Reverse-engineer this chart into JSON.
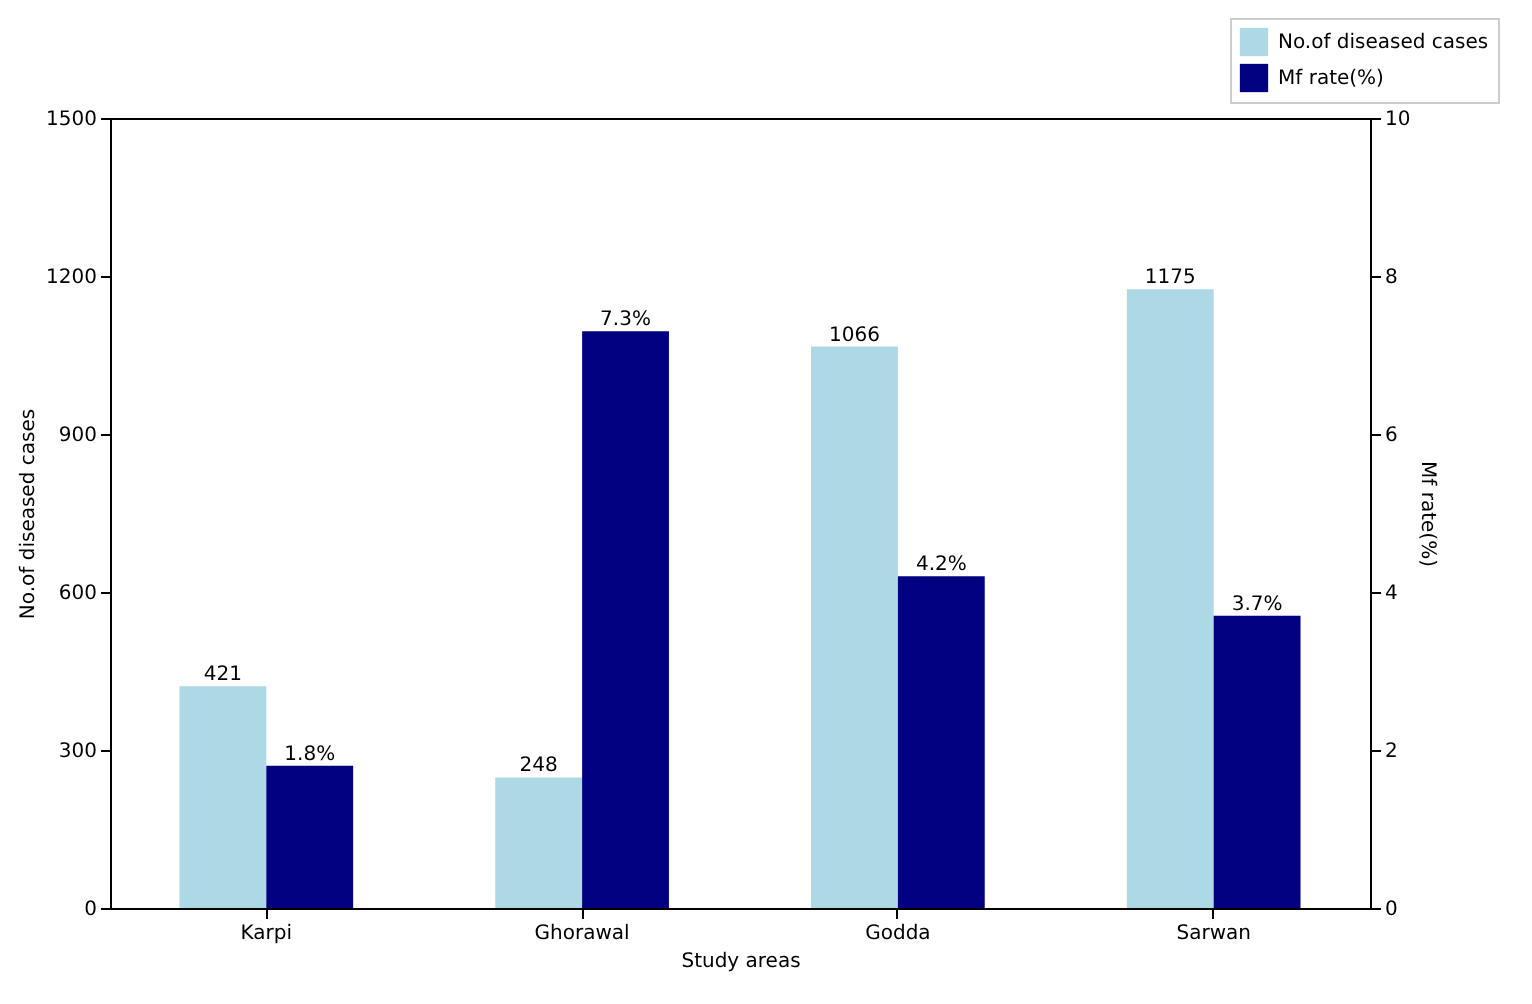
{
  "chart_data": {
    "type": "bar",
    "categories": [
      "Karpi",
      "Ghorawal",
      "Godda",
      "Sarwan"
    ],
    "xlabel": "Study areas",
    "ylabel": "No.of diseased cases",
    "y2label": "Mf rate(%)",
    "series": [
      {
        "name": "No.of diseased cases",
        "color": "#add8e6",
        "values": [
          421,
          248,
          1066,
          1175
        ],
        "value_labels": [
          "421",
          "248",
          "1066",
          "1175"
        ]
      },
      {
        "name": "Mf rate(%)",
        "color": "#000080",
        "axis": "y2",
        "values": [
          1.8,
          7.3,
          4.2,
          3.7
        ],
        "value_labels": [
          "1.8%",
          "7.3%",
          "4.2%",
          "3.7%"
        ]
      }
    ],
    "ylim": [
      0,
      1500
    ],
    "yticks": [
      0,
      300,
      600,
      900,
      1200,
      1500
    ],
    "y2lim": [
      0,
      10
    ],
    "y2ticks": [
      0,
      2,
      4,
      6,
      8,
      10
    ],
    "legend": "top right"
  }
}
